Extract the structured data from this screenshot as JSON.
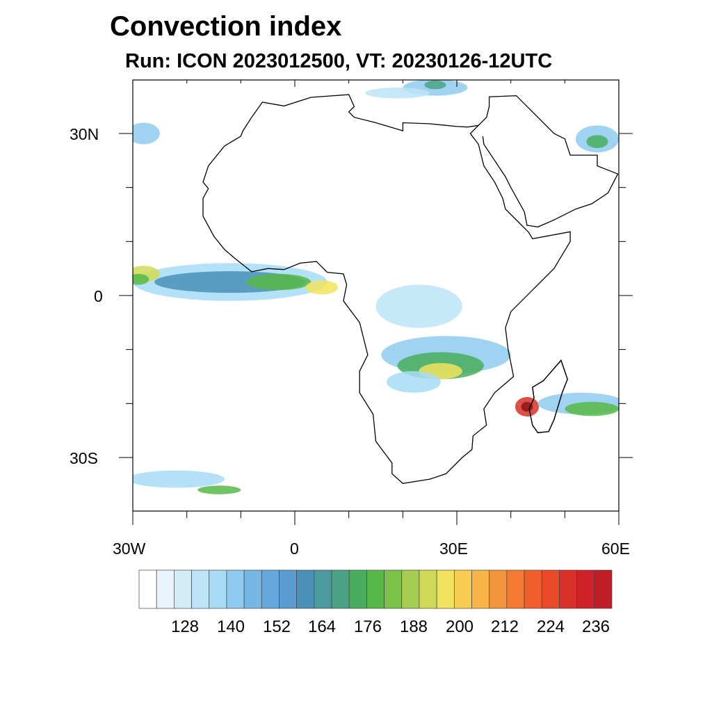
{
  "title": "Convection index",
  "subtitle": "Run: ICON 2023012500,  VT: 20230126-12UTC",
  "axes": {
    "lat_labels": [
      "30N",
      "0",
      "30S"
    ],
    "lon_labels": [
      "30W",
      "0",
      "30E",
      "60E"
    ],
    "lon_range": [
      -30,
      60
    ],
    "lat_range": [
      -40,
      40
    ]
  },
  "colorbar": {
    "labels": [
      "128",
      "140",
      "152",
      "164",
      "176",
      "188",
      "200",
      "212",
      "224",
      "236"
    ],
    "colors": [
      "#ffffff",
      "#e8f5fc",
      "#d2ecf8",
      "#bde4f7",
      "#a6dcf6",
      "#8fcbf0",
      "#78b6e3",
      "#66a8db",
      "#5a9bd0",
      "#4a91b8",
      "#4a9aa0",
      "#4aa284",
      "#48ad5e",
      "#56b847",
      "#7bc24a",
      "#a5cd51",
      "#cfdb58",
      "#f2e35c",
      "#f9cd52",
      "#f8b447",
      "#f5953b",
      "#f47a31",
      "#ef5e2b",
      "#e84a28",
      "#d93027",
      "#cf2128",
      "#bf1e26",
      "#b01c23",
      "#9f1a1f",
      "#8c161a"
    ]
  }
}
